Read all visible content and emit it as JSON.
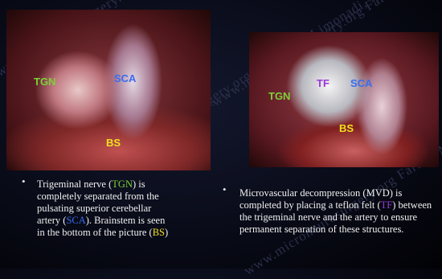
{
  "watermark": "www.microneurosurgery.org  Farhad M. Limonadi, M.D.",
  "left": {
    "labels": {
      "tgn": "TGN",
      "sca": "SCA",
      "bs": "BS"
    },
    "caption": [
      "Trigeminal nerve (",
      "TGN",
      ") is completely separated from the pulsating superior cerebellar artery (",
      "SCA",
      "). Brainstem is seen in the bottom of the picture (",
      "BS",
      ")"
    ]
  },
  "right": {
    "labels": {
      "tf": "TF",
      "sca": "SCA",
      "tgn": "TGN",
      "bs": "BS"
    },
    "caption": [
      "Microvascular decompression (MVD) is completed by placing a teflon felt (",
      "TF",
      ") between the trigeminal nerve and the artery to ensure permanent separation of these structures."
    ]
  }
}
